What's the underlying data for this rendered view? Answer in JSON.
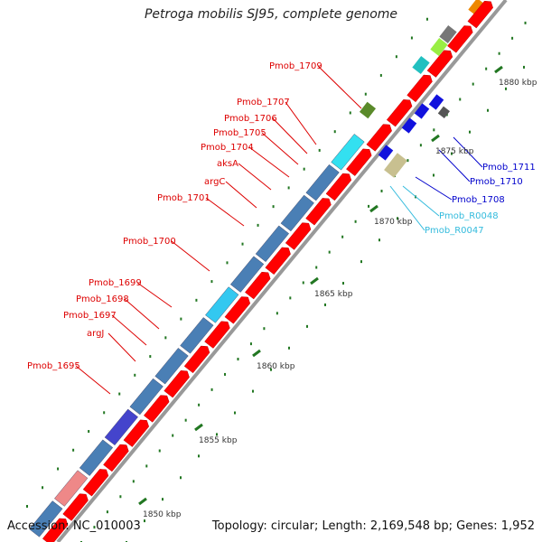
{
  "title": "Petroga mobilis SJ95, complete genome",
  "accession_text": "Accession: NC_010003",
  "summary_text": "Topology: circular; Length: 2,169,548 bp; Genes: 1,952",
  "scale_labels": [
    "1850 kbp",
    "1855 kbp",
    "1860 kbp",
    "1865 kbp",
    "1870 kbp",
    "1875 kbp",
    "1880 kbp"
  ],
  "colors": {
    "label_red": "#dd0000",
    "label_blue": "#0000cc",
    "label_cyan": "#33bbdd",
    "backbone": "#999999",
    "tick": "#227722",
    "cds": "#ff0000",
    "steel": "#4a7fb5"
  },
  "gene_labels": [
    {
      "text": "Pmob_1709",
      "color": "red"
    },
    {
      "text": "Pmob_1707",
      "color": "red"
    },
    {
      "text": "Pmob_1706",
      "color": "red"
    },
    {
      "text": "Pmob_1705",
      "color": "red"
    },
    {
      "text": "Pmob_1704",
      "color": "red"
    },
    {
      "text": "aksA",
      "color": "red"
    },
    {
      "text": "argC",
      "color": "red"
    },
    {
      "text": "Pmob_1701",
      "color": "red"
    },
    {
      "text": "Pmob_1700",
      "color": "red"
    },
    {
      "text": "Pmob_1699",
      "color": "red"
    },
    {
      "text": "Pmob_1698",
      "color": "red"
    },
    {
      "text": "Pmob_1697",
      "color": "red"
    },
    {
      "text": "argJ",
      "color": "red"
    },
    {
      "text": "Pmob_1695",
      "color": "red"
    },
    {
      "text": "Pmob_1711",
      "color": "blue"
    },
    {
      "text": "Pmob_1710",
      "color": "blue"
    },
    {
      "text": "Pmob_1708",
      "color": "blue"
    },
    {
      "text": "Pmob_R0048",
      "color": "cyan"
    },
    {
      "text": "Pmob_R0047",
      "color": "cyan"
    }
  ]
}
